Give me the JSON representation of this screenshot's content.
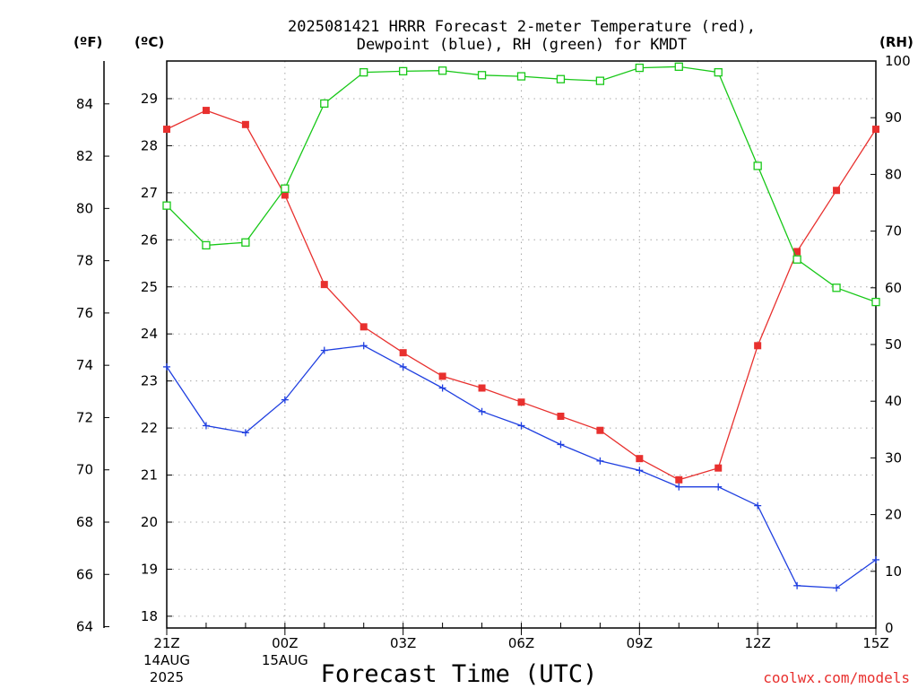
{
  "title_line1": "2025081421 HRRR Forecast 2-meter Temperature (red),",
  "title_line2": "Dewpoint (blue), RH (green) for KMDT",
  "unit_f": "(ºF)",
  "unit_c": "(ºC)",
  "unit_rh": "(RH)",
  "xlabel": "Forecast Time (UTC)",
  "watermark": "coolwx.com/models",
  "colors": {
    "temperature": "#e8302e",
    "dewpoint": "#1f3fe0",
    "rh": "#18c818",
    "grid": "#a8a8a8"
  },
  "chart_data": {
    "type": "line",
    "x_hours": [
      0,
      1,
      2,
      3,
      4,
      5,
      6,
      7,
      8,
      9,
      10,
      11,
      12,
      13,
      14,
      15,
      16,
      17,
      18
    ],
    "x_ticks": [
      {
        "label": "21Z",
        "sub1": "14AUG",
        "sub2": "2025",
        "hour": 0
      },
      {
        "label": "00Z",
        "sub1": "15AUG",
        "sub2": "",
        "hour": 3
      },
      {
        "label": "03Z",
        "sub1": "",
        "sub2": "",
        "hour": 6
      },
      {
        "label": "06Z",
        "sub1": "",
        "sub2": "",
        "hour": 9
      },
      {
        "label": "09Z",
        "sub1": "",
        "sub2": "",
        "hour": 12
      },
      {
        "label": "12Z",
        "sub1": "",
        "sub2": "",
        "hour": 15
      },
      {
        "label": "15Z",
        "sub1": "",
        "sub2": "",
        "hour": 18
      }
    ],
    "f_ticks": [
      "64",
      "66",
      "68",
      "70",
      "72",
      "74",
      "76",
      "78",
      "80",
      "82",
      "84"
    ],
    "c_ticks": [
      "18",
      "19",
      "20",
      "21",
      "22",
      "23",
      "24",
      "25",
      "26",
      "27",
      "28",
      "29"
    ],
    "rh_ticks": [
      "0",
      "10",
      "20",
      "30",
      "40",
      "50",
      "60",
      "70",
      "80",
      "90",
      "100"
    ],
    "c_range": [
      17.75,
      29.8
    ],
    "rh_range": [
      0,
      100
    ],
    "series": [
      {
        "name": "Temperature",
        "axis": "C",
        "marker": "filled-square",
        "values": [
          28.35,
          28.75,
          28.45,
          26.95,
          25.05,
          24.15,
          23.6,
          23.1,
          22.85,
          22.55,
          22.25,
          21.95,
          21.35,
          20.9,
          21.15,
          23.75,
          25.75,
          27.05,
          28.35
        ]
      },
      {
        "name": "Dewpoint",
        "axis": "C",
        "marker": "plus",
        "values": [
          23.3,
          22.05,
          21.9,
          22.6,
          23.65,
          23.75,
          23.3,
          22.85,
          22.35,
          22.05,
          21.65,
          21.3,
          21.1,
          20.75,
          20.75,
          20.35,
          18.65,
          18.6,
          19.2
        ]
      },
      {
        "name": "RH",
        "axis": "RH",
        "marker": "open-square",
        "values": [
          74.5,
          67.5,
          68.0,
          77.5,
          92.5,
          98.0,
          98.2,
          98.3,
          97.5,
          97.3,
          96.8,
          96.5,
          98.8,
          99.0,
          98.0,
          81.5,
          65.0,
          60.0,
          57.5
        ]
      }
    ]
  }
}
